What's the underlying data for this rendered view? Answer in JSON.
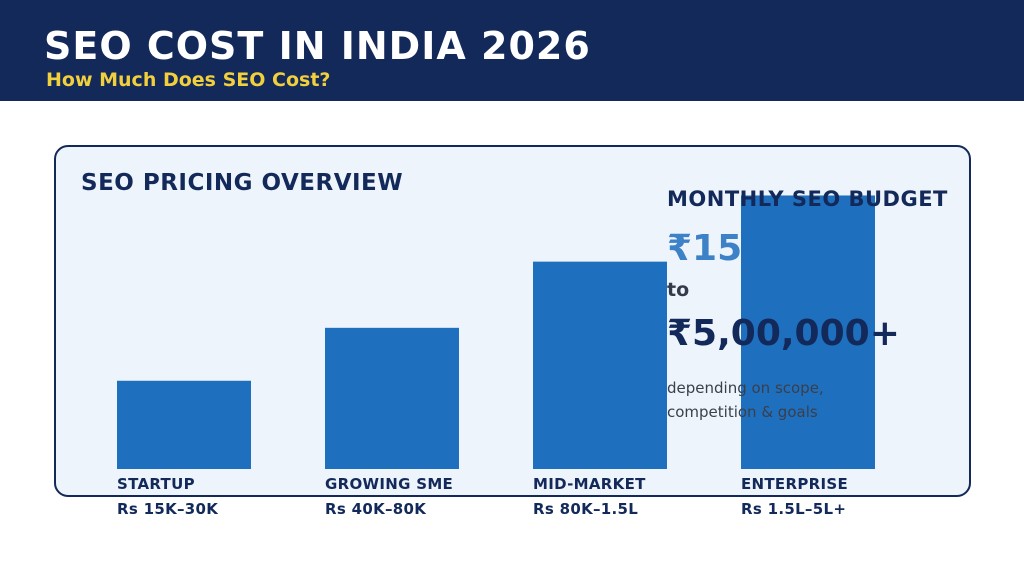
{
  "header": {
    "title": "SEO COST IN INDIA 2026",
    "subtitle": "How Much Does SEO Cost?"
  },
  "panel": {
    "title": "SEO PRICING OVERVIEW"
  },
  "budget": {
    "title": "MONTHLY SEO BUDGET",
    "low": "₹15,000",
    "to": "to",
    "high": "₹5,00,000+",
    "note": "depending on scope, competition & goals"
  },
  "colors": {
    "header_bg": "#12295a",
    "subtitle": "#f2cf3c",
    "bar": "#1f6fbf",
    "panel_bg": "#eef4fb"
  },
  "chart_data": {
    "type": "bar",
    "categories": [
      "STARTUP",
      "GROWING SME",
      "MID-MARKET",
      "ENTERPRISE"
    ],
    "ranges": [
      "Rs 15K–30K",
      "Rs 40K–80K",
      "Rs 80K–1.5L",
      "Rs 1.5L–5L+"
    ],
    "values": [
      1,
      1.6,
      2.35,
      3.1
    ],
    "ylim": [
      0,
      3.4
    ],
    "grid": false,
    "legend": "none"
  }
}
